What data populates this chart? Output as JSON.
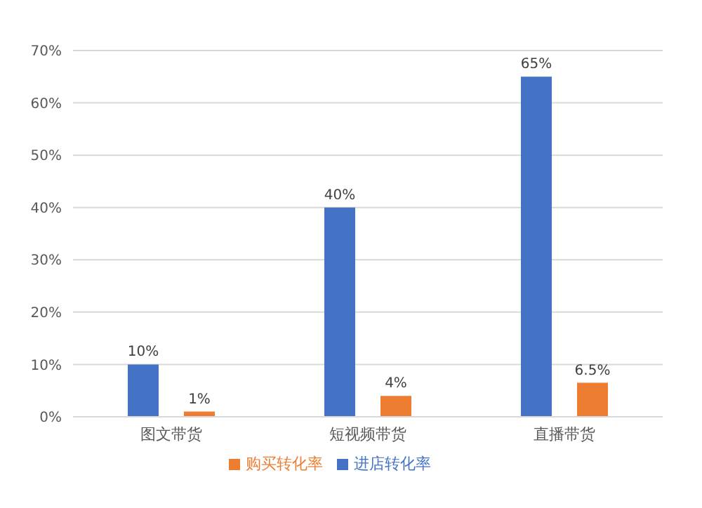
{
  "chart_data": {
    "type": "bar",
    "categories": [
      "图文带货",
      "短视频带货",
      "直播带货"
    ],
    "series": [
      {
        "name": "进店转化率",
        "color": "#4472c4",
        "values": [
          10,
          40,
          65
        ],
        "value_labels": [
          "10%",
          "40%",
          "65%"
        ]
      },
      {
        "name": "购买转化率",
        "color": "#ed7d31",
        "values": [
          1,
          4,
          6.5
        ],
        "value_labels": [
          "1%",
          "4%",
          "6.5%"
        ]
      }
    ],
    "ylim": [
      0,
      70
    ],
    "yticks": [
      {
        "value": 0,
        "label": "0%"
      },
      {
        "value": 10,
        "label": "10%"
      },
      {
        "value": 20,
        "label": "20%"
      },
      {
        "value": 30,
        "label": "30%"
      },
      {
        "value": 40,
        "label": "40%"
      },
      {
        "value": 50,
        "label": "50%"
      },
      {
        "value": 60,
        "label": "60%"
      },
      {
        "value": 70,
        "label": "70%"
      }
    ],
    "grid": "y",
    "legend": "bottom"
  }
}
